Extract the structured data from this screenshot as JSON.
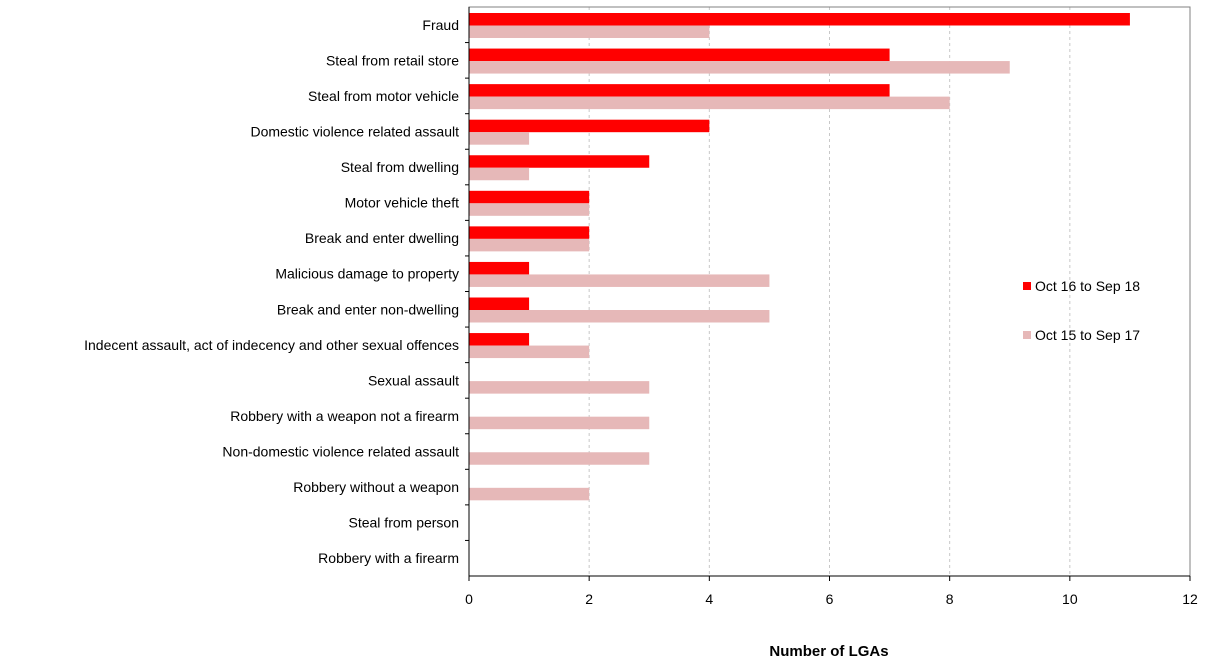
{
  "chart_data": {
    "type": "bar",
    "orientation": "horizontal",
    "categories": [
      "Fraud",
      "Steal from retail store",
      "Steal from motor vehicle",
      "Domestic violence related assault",
      "Steal from dwelling",
      "Motor vehicle theft",
      "Break and enter dwelling",
      "Malicious damage to property",
      "Break and enter non-dwelling",
      "Indecent assault, act of indecency and other sexual offences",
      "Sexual assault",
      "Robbery with a weapon not a firearm",
      "Non-domestic violence related assault",
      "Robbery without a weapon",
      "Steal from person",
      "Robbery with a firearm"
    ],
    "series": [
      {
        "name": "Oct 16 to Sep 18",
        "color": "#ff0000",
        "values": [
          11,
          7,
          7,
          4,
          3,
          2,
          2,
          1,
          1,
          1,
          0,
          0,
          0,
          0,
          0,
          0
        ]
      },
      {
        "name": "Oct 15 to Sep 17",
        "color": "#e6b8b8",
        "values": [
          4,
          9,
          8,
          1,
          1,
          2,
          2,
          5,
          5,
          2,
          3,
          3,
          3,
          2,
          0,
          0
        ]
      }
    ],
    "xlabel": "Number of LGAs",
    "ylabel": "",
    "xlim": [
      0,
      12
    ],
    "xticks": [
      0,
      2,
      4,
      6,
      8,
      10,
      12
    ],
    "grid": "vertical dashed",
    "legend_position": "right"
  }
}
